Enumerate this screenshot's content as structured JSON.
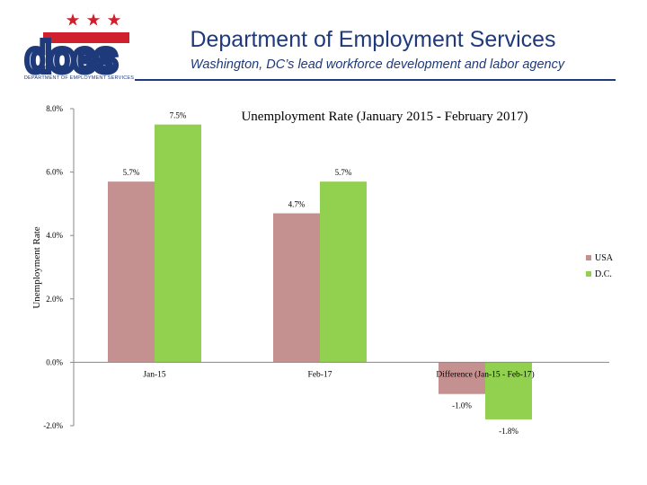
{
  "header": {
    "title": "Department of Employment Services",
    "tagline": "Washington, DC’s lead workforce development and labor agency",
    "logo_text": "does",
    "logo_subtext": "DEPARTMENT OF EMPLOYMENT SERVICES",
    "logo_icon": "three-stars-flag-logo",
    "colors": {
      "navy": "#1f3a7a",
      "red": "#d0202e"
    }
  },
  "chart_data": {
    "type": "bar",
    "title": "Unemployment Rate (January 2015 - February 2017)",
    "xlabel": "",
    "ylabel": "Unemployment Rate",
    "categories": [
      "Jan-15",
      "Feb-17",
      "Difference (Jan-15 - Feb-17)"
    ],
    "series": [
      {
        "name": "USA",
        "color": "#c59090",
        "values": [
          5.7,
          4.7,
          -1.0
        ],
        "labels": [
          "5.7%",
          "4.7%",
          "-1.0%"
        ]
      },
      {
        "name": "D.C.",
        "color": "#92d050",
        "values": [
          7.5,
          5.7,
          -1.8
        ],
        "labels": [
          "7.5%",
          "5.7%",
          "-1.8%"
        ]
      }
    ],
    "yticks": [
      8.0,
      6.0,
      4.0,
      2.0,
      0.0,
      -2.0
    ],
    "ytick_labels": [
      "8.0%",
      "6.0%",
      "4.0%",
      "2.0%",
      "0.0%",
      "-2.0%"
    ],
    "ylim": [
      -2.0,
      8.0
    ],
    "grid": false,
    "legend": "right"
  }
}
